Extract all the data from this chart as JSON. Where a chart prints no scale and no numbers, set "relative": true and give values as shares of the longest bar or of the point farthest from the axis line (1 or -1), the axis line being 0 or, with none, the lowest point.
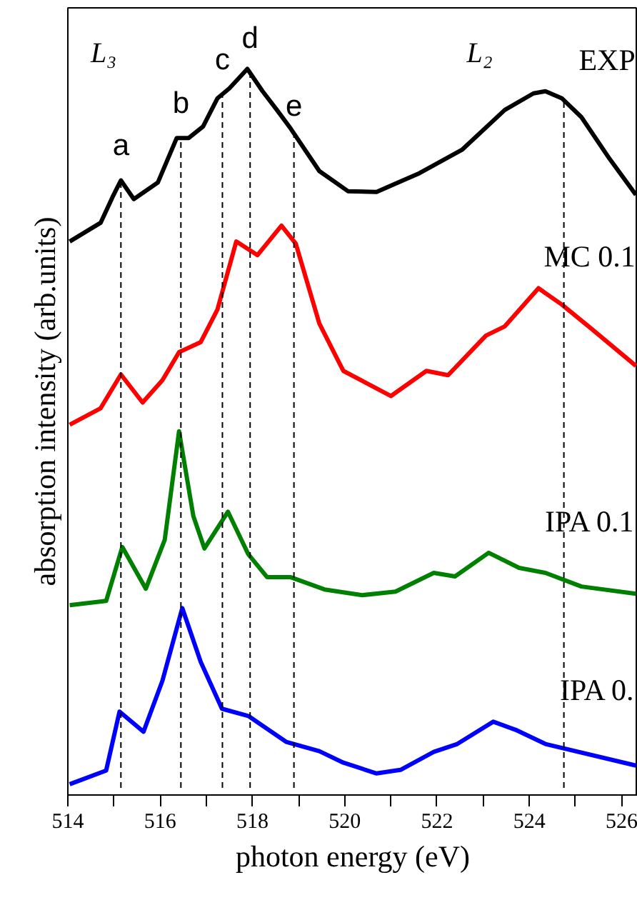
{
  "chart_data": {
    "type": "line",
    "relative": true,
    "xlabel": "photon energy (eV)",
    "ylabel": "absorption intensity (arb.units)",
    "xlim": [
      514,
      526.35
    ],
    "xticks": [
      514,
      {
        "value": 515,
        "label": null
      },
      516,
      {
        "value": 517,
        "label": null
      },
      518,
      {
        "value": 519,
        "label": null
      },
      520,
      {
        "value": 521,
        "label": null
      },
      522,
      {
        "value": 523,
        "label": null
      },
      524,
      {
        "value": 525,
        "label": null
      },
      526
    ],
    "tick_labels": "x",
    "grid": false,
    "legend": false,
    "marker": "none",
    "line_style": "solid",
    "series": [
      {
        "name": "EXP",
        "color": "#000000",
        "x": [
          514.04,
          514.71,
          514.97,
          515.15,
          515.43,
          515.95,
          516.36,
          516.62,
          516.93,
          517.24,
          517.5,
          517.89,
          518.22,
          518.53,
          518.83,
          519.45,
          520.07,
          520.69,
          521.62,
          522.55,
          523.47,
          524.09,
          524.35,
          524.71,
          525.13,
          525.74,
          526.31
        ],
        "values": [
          0.76,
          0.786,
          0.822,
          0.845,
          0.819,
          0.842,
          0.904,
          0.904,
          0.92,
          0.959,
          0.973,
          1.0,
          0.969,
          0.943,
          0.917,
          0.858,
          0.83,
          0.829,
          0.855,
          0.888,
          0.943,
          0.966,
          0.969,
          0.959,
          0.933,
          0.875,
          0.825
        ]
      },
      {
        "name": "MC 0.1",
        "color": "#ff0000",
        "x": [
          514.04,
          514.71,
          515.15,
          515.62,
          516.05,
          516.41,
          516.88,
          517.24,
          517.65,
          518.11,
          518.63,
          518.94,
          519.45,
          519.97,
          521.0,
          521.77,
          522.24,
          523.06,
          523.47,
          524.2,
          524.71,
          525.34,
          526.31
        ],
        "values": [
          0.505,
          0.528,
          0.575,
          0.536,
          0.567,
          0.606,
          0.62,
          0.665,
          0.76,
          0.741,
          0.782,
          0.757,
          0.646,
          0.58,
          0.545,
          0.58,
          0.574,
          0.629,
          0.642,
          0.695,
          0.672,
          0.639,
          0.587
        ]
      },
      {
        "name": "IPA 0.1",
        "color": "#008000",
        "x": [
          514.04,
          514.83,
          515.18,
          515.69,
          516.1,
          516.41,
          516.72,
          516.96,
          517.47,
          517.91,
          518.32,
          518.83,
          519.56,
          520.38,
          521.1,
          521.93,
          522.39,
          523.12,
          523.78,
          524.35,
          525.13,
          526.31
        ],
        "values": [
          0.254,
          0.26,
          0.335,
          0.277,
          0.345,
          0.496,
          0.378,
          0.333,
          0.384,
          0.325,
          0.293,
          0.293,
          0.276,
          0.268,
          0.273,
          0.299,
          0.294,
          0.327,
          0.306,
          0.299,
          0.28,
          0.27
        ]
      },
      {
        "name": "IPA 0.",
        "color": "#0000ff",
        "x": [
          514.04,
          514.83,
          515.12,
          515.64,
          516.05,
          516.48,
          516.88,
          517.34,
          517.91,
          518.73,
          519.45,
          519.97,
          520.69,
          521.21,
          521.93,
          522.44,
          523.22,
          523.73,
          524.35,
          526.31
        ],
        "values": [
          0.005,
          0.024,
          0.106,
          0.078,
          0.149,
          0.25,
          0.175,
          0.11,
          0.1,
          0.064,
          0.051,
          0.035,
          0.02,
          0.025,
          0.05,
          0.061,
          0.092,
          0.08,
          0.061,
          0.031
        ]
      }
    ],
    "ref_lines": [
      {
        "axis": "x",
        "value": 515.15,
        "label": "a",
        "color": "#000000",
        "line_style": "dashed"
      },
      {
        "axis": "x",
        "value": 516.45,
        "label": "b",
        "color": "#000000",
        "line_style": "dashed"
      },
      {
        "axis": "x",
        "value": 517.35,
        "label": "c",
        "color": "#000000",
        "line_style": "dashed"
      },
      {
        "axis": "x",
        "value": 517.95,
        "label": "d",
        "color": "#000000",
        "line_style": "dashed"
      },
      {
        "axis": "x",
        "value": 518.9,
        "label": "e",
        "color": "#000000",
        "line_style": "dashed"
      },
      {
        "axis": "x",
        "value": 524.75,
        "label": null,
        "color": "#000000",
        "line_style": "dashed"
      }
    ],
    "annotations": [
      "L₃",
      "L₂"
    ]
  }
}
